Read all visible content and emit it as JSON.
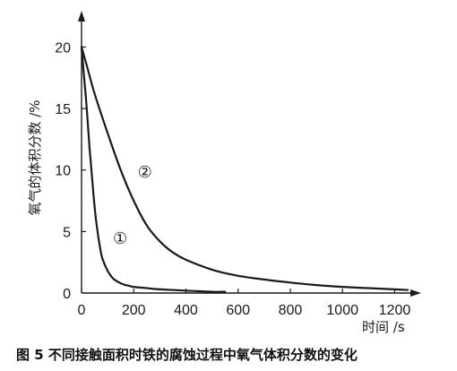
{
  "chart_data": {
    "type": "line",
    "title": "",
    "xlabel": "时间 /s",
    "ylabel": "氧气的体积分数 /%",
    "xlim": [
      0,
      1250
    ],
    "ylim": [
      0,
      22
    ],
    "xticks": [
      0,
      200,
      400,
      600,
      800,
      1000,
      1200
    ],
    "yticks": [
      0,
      5,
      10,
      15,
      20
    ],
    "grid": false,
    "legend": "none",
    "series": [
      {
        "marker": "①",
        "label_at": [
          120,
          4
        ],
        "x": [
          0,
          10,
          20,
          30,
          40,
          50,
          60,
          70,
          80,
          100,
          120,
          140,
          160,
          180,
          200,
          250,
          300,
          400,
          500,
          550
        ],
        "y": [
          20,
          17.5,
          15,
          12,
          9.5,
          7,
          5.2,
          3.8,
          2.8,
          1.8,
          1.2,
          0.9,
          0.7,
          0.6,
          0.5,
          0.4,
          0.3,
          0.2,
          0.1,
          0.1
        ]
      },
      {
        "marker": "②",
        "label_at": [
          215,
          9.4
        ],
        "x": [
          0,
          20,
          50,
          100,
          150,
          200,
          250,
          300,
          350,
          400,
          500,
          600,
          700,
          800,
          900,
          1000,
          1100,
          1200,
          1250
        ],
        "y": [
          20,
          18.5,
          16.2,
          13,
          10,
          7.5,
          5.5,
          4.2,
          3.3,
          2.7,
          1.9,
          1.4,
          1.1,
          0.85,
          0.65,
          0.5,
          0.4,
          0.3,
          0.25
        ]
      }
    ],
    "color": "#1a1a1a"
  },
  "caption": "图 5   不同接触面积时铁的腐蚀过程中氧气体积分数的变化"
}
